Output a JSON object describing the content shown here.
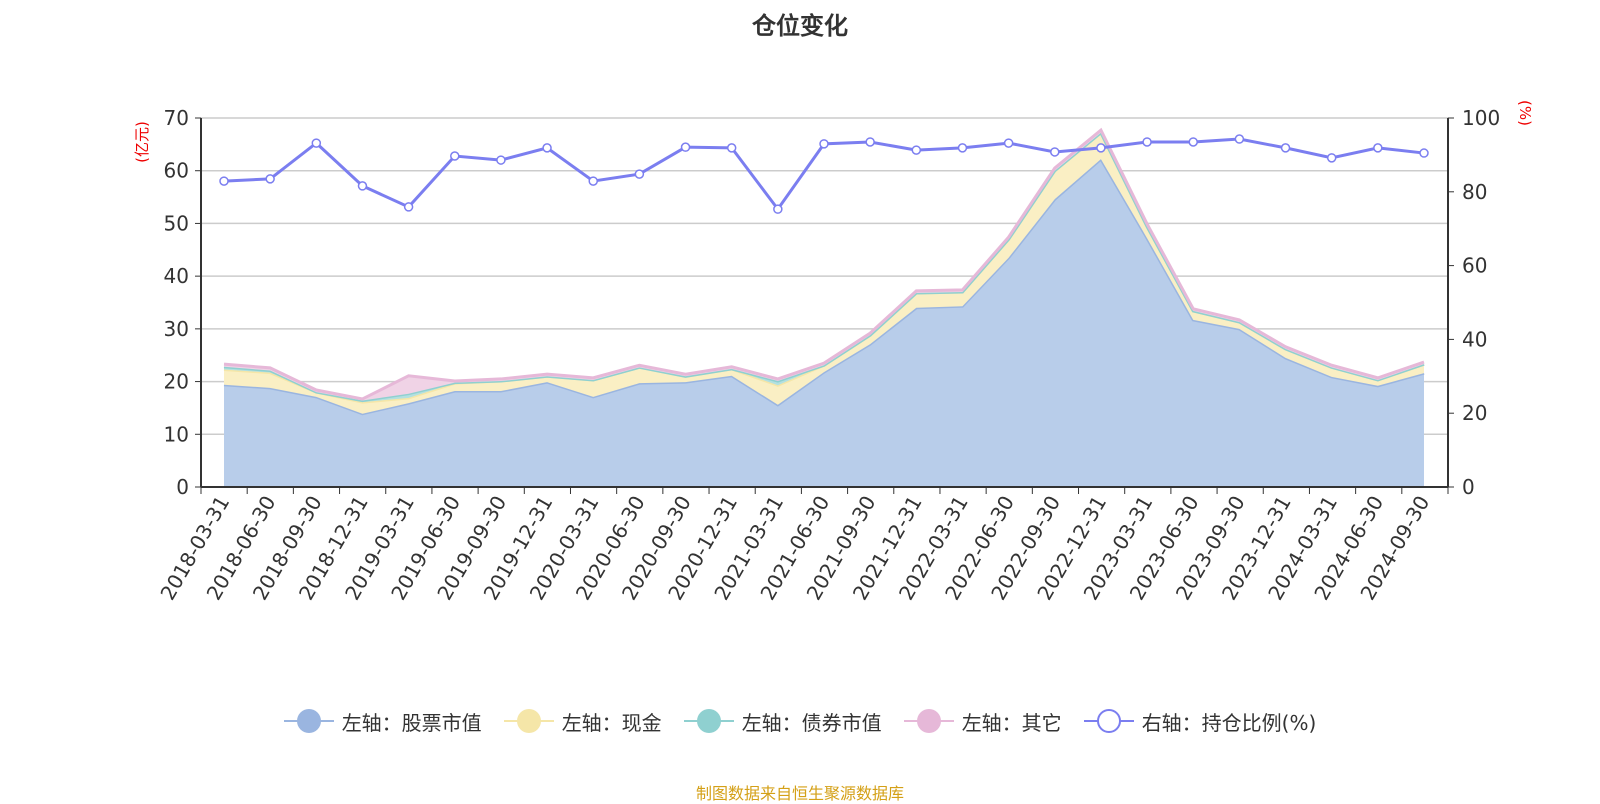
{
  "chart_data": {
    "type": "area",
    "title": "仓位变化",
    "left_axis": {
      "label": "(亿元)",
      "range": [
        0,
        70
      ],
      "ticks": [
        0,
        10,
        20,
        30,
        40,
        50,
        60,
        70
      ]
    },
    "right_axis": {
      "label": "(%)",
      "range": [
        0,
        100
      ],
      "ticks": [
        0,
        20,
        40,
        60,
        80,
        100
      ]
    },
    "grid": true,
    "legend_placement": "bottom",
    "categories": [
      "2018-03-31",
      "2018-06-30",
      "2018-09-30",
      "2018-12-31",
      "2019-03-31",
      "2019-06-30",
      "2019-09-30",
      "2019-12-31",
      "2020-03-31",
      "2020-06-30",
      "2020-09-30",
      "2020-12-31",
      "2021-03-31",
      "2021-06-30",
      "2021-09-30",
      "2021-12-31",
      "2022-03-31",
      "2022-06-30",
      "2022-09-30",
      "2022-12-31",
      "2023-03-31",
      "2023-06-30",
      "2023-09-30",
      "2023-12-31",
      "2024-03-31",
      "2024-06-30",
      "2024-09-30"
    ],
    "series": [
      {
        "name": "左轴：股票市值",
        "axis": "left",
        "stacked": true,
        "color": "#9ab5e0",
        "fill": "#b8cdea",
        "values": [
          19.4,
          18.8,
          17.1,
          13.9,
          15.9,
          18.2,
          18.2,
          19.9,
          17.1,
          19.7,
          19.9,
          21.1,
          15.6,
          21.8,
          27.1,
          34.0,
          34.3,
          43.5,
          54.6,
          62.2,
          47.2,
          31.7,
          30.0,
          24.5,
          20.9,
          19.2,
          21.6
        ]
      },
      {
        "name": "左轴：现金",
        "axis": "left",
        "stacked": true,
        "color": "#f5e6a8",
        "fill": "#faefc4",
        "values": [
          2.9,
          2.9,
          0.9,
          2.2,
          1.0,
          1.5,
          1.9,
          1.1,
          3.2,
          3.0,
          1.1,
          1.3,
          3.7,
          1.3,
          1.7,
          2.8,
          2.7,
          3.5,
          5.4,
          5.0,
          2.2,
          1.7,
          1.3,
          1.7,
          1.8,
          1.1,
          1.7
        ]
      },
      {
        "name": "左轴：债券市值",
        "axis": "left",
        "stacked": true,
        "color": "#8fd0d0",
        "fill": "#b3e0e0",
        "values": [
          0.5,
          0.4,
          0,
          0.3,
          0.8,
          0.1,
          0,
          0,
          0,
          0,
          0,
          0,
          0.8,
          0,
          0,
          0,
          0,
          0,
          0,
          0,
          0,
          0,
          0,
          0,
          0,
          0,
          0
        ]
      },
      {
        "name": "左轴：其它",
        "axis": "left",
        "stacked": true,
        "color": "#e6b8d8",
        "fill": "#f0d3e6",
        "values": [
          0.5,
          0.5,
          0.4,
          0.3,
          3.4,
          0.3,
          0.4,
          0.4,
          0.4,
          0.4,
          0.4,
          0.4,
          0.4,
          0.4,
          0.4,
          0.4,
          0.4,
          0.4,
          0.5,
          0.5,
          0.5,
          0.4,
          0.4,
          0.4,
          0.4,
          0.4,
          0.4
        ]
      },
      {
        "name": "右轴：持仓比例(%)",
        "axis": "right",
        "type": "line",
        "color": "#7b7ef0",
        "values": [
          82.9,
          83.5,
          93.2,
          81.6,
          75.9,
          89.7,
          88.6,
          91.9,
          82.9,
          84.8,
          92.1,
          91.9,
          75.3,
          93.0,
          93.5,
          91.3,
          91.9,
          93.2,
          90.8,
          91.9,
          93.5,
          93.5,
          94.3,
          91.9,
          89.2,
          91.9,
          90.5
        ]
      }
    ]
  },
  "source": "制图数据来自恒生聚源数据库"
}
